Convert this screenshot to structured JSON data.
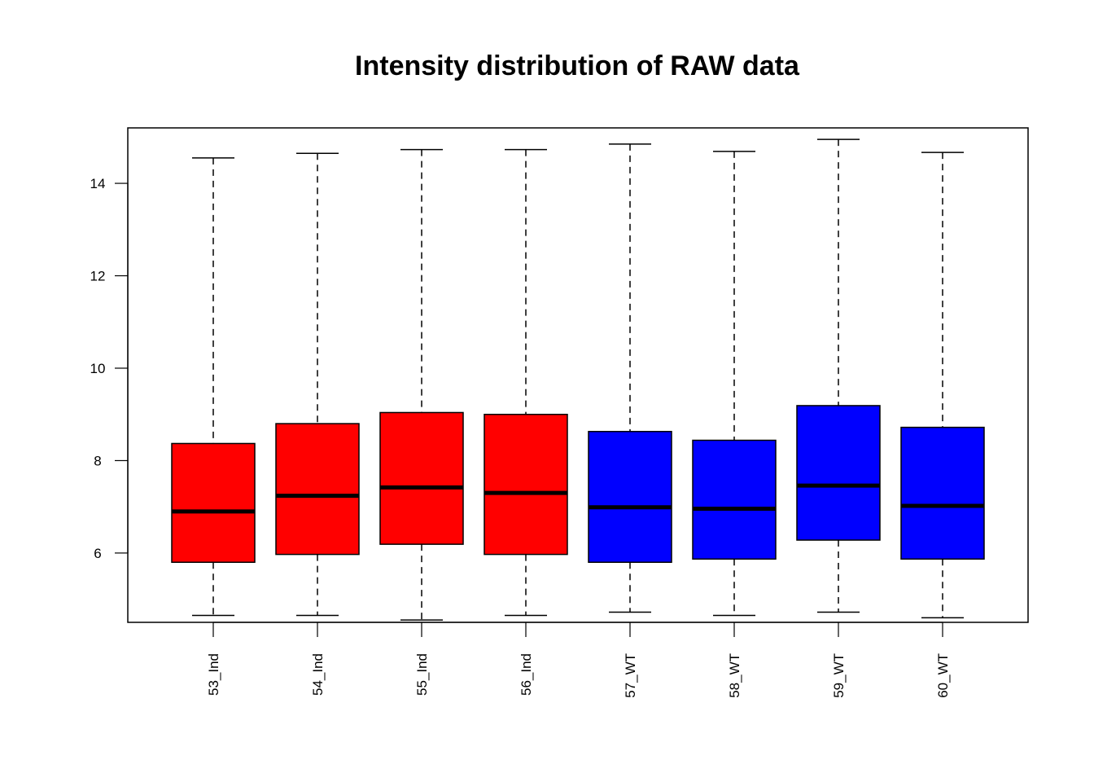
{
  "chart_data": {
    "type": "boxplot",
    "title": "Intensity distribution of RAW data",
    "xlabel": "",
    "ylabel": "",
    "ylim": [
      4.5,
      15.2
    ],
    "y_ticks": [
      6,
      8,
      10,
      12,
      14
    ],
    "y_tick_labels": [
      "6",
      "8",
      "10",
      "12",
      "14"
    ],
    "categories": [
      "53_Ind",
      "54_Ind",
      "55_Ind",
      "56_Ind",
      "57_WT",
      "58_WT",
      "59_WT",
      "60_WT"
    ],
    "boxes": [
      {
        "label": "53_Ind",
        "min": 4.65,
        "q1": 5.8,
        "median": 6.9,
        "q3": 8.37,
        "max": 14.55,
        "color": "#ff0000"
      },
      {
        "label": "54_Ind",
        "min": 4.65,
        "q1": 5.97,
        "median": 7.24,
        "q3": 8.8,
        "max": 14.65,
        "color": "#ff0000"
      },
      {
        "label": "55_Ind",
        "min": 4.55,
        "q1": 6.19,
        "median": 7.42,
        "q3": 9.04,
        "max": 14.73,
        "color": "#ff0000"
      },
      {
        "label": "56_Ind",
        "min": 4.65,
        "q1": 5.97,
        "median": 7.3,
        "q3": 9.0,
        "max": 14.73,
        "color": "#ff0000"
      },
      {
        "label": "57_WT",
        "min": 4.72,
        "q1": 5.8,
        "median": 6.99,
        "q3": 8.63,
        "max": 14.85,
        "color": "#0000ff"
      },
      {
        "label": "58_WT",
        "min": 4.65,
        "q1": 5.87,
        "median": 6.96,
        "q3": 8.44,
        "max": 14.69,
        "color": "#0000ff"
      },
      {
        "label": "59_WT",
        "min": 4.72,
        "q1": 6.28,
        "median": 7.46,
        "q3": 9.19,
        "max": 14.95,
        "color": "#0000ff"
      },
      {
        "label": "60_WT",
        "min": 4.6,
        "q1": 5.87,
        "median": 7.02,
        "q3": 8.72,
        "max": 14.67,
        "color": "#0000ff"
      }
    ],
    "grid": false,
    "legend": "none"
  }
}
